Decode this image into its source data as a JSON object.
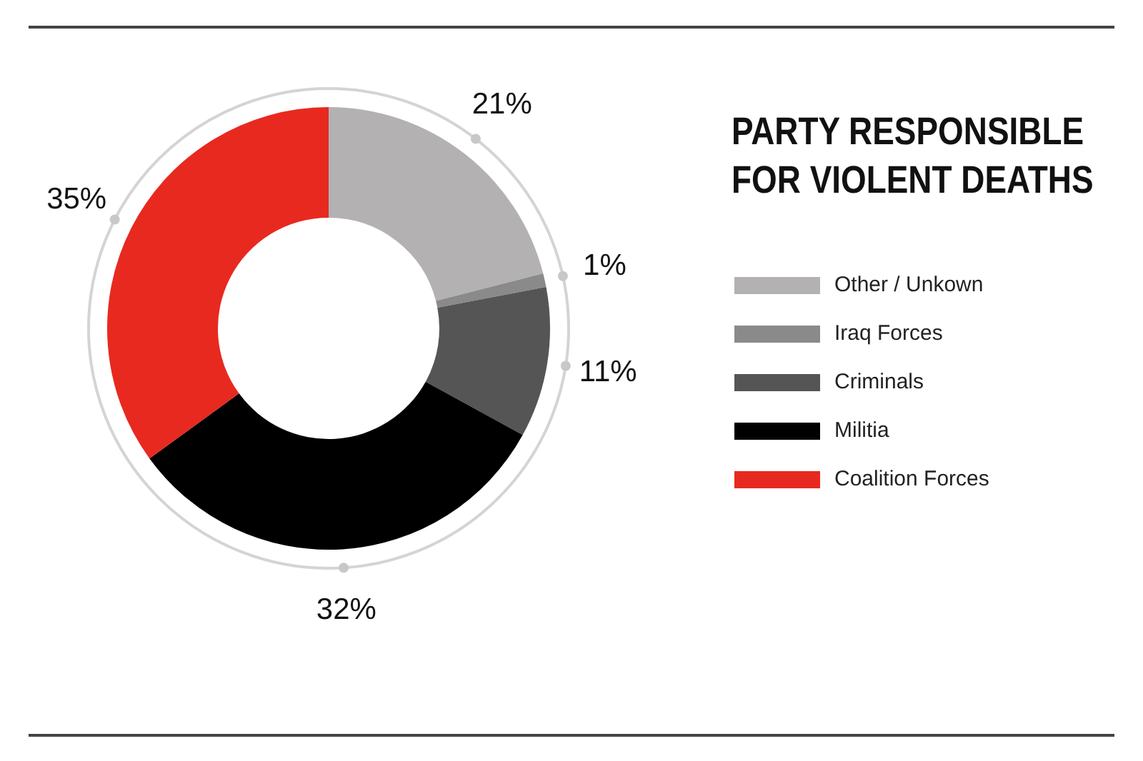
{
  "chart_data": {
    "type": "donut",
    "title": "PARTY RESPONSIBLE FOR VIOLENT DEATHS",
    "categories": [
      "Other / Unkown",
      "Iraq Forces",
      "Criminals",
      "Militia",
      "Coalition Forces"
    ],
    "values": [
      21,
      1,
      11,
      32,
      35
    ],
    "value_labels": [
      "21%",
      "1%",
      "11%",
      "32%",
      "35%"
    ],
    "colors": [
      "#b3b1b2",
      "#8a8a8a",
      "#555555",
      "#000000",
      "#e8291f"
    ],
    "legend": "right"
  }
}
